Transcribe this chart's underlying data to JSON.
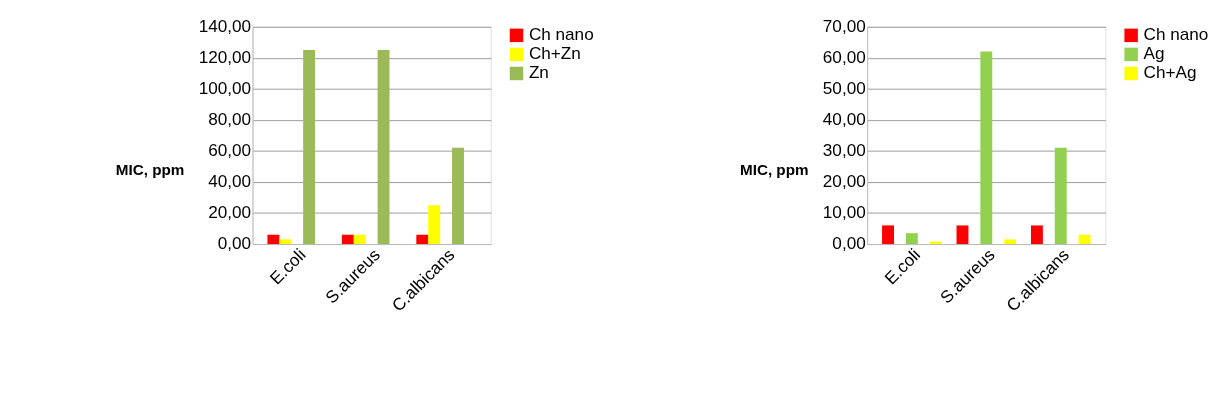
{
  "chart_data": [
    {
      "type": "bar",
      "ylabel": "MIC, ppm",
      "categories": [
        "E.coli",
        "S.aureus",
        "C.albicans"
      ],
      "series": [
        {
          "name": "Ch nano",
          "color": "#ff0000",
          "values": [
            6,
            6,
            6
          ]
        },
        {
          "name": "Ch+Zn",
          "color": "#ffff00",
          "values": [
            3,
            6,
            25
          ]
        },
        {
          "name": "Zn",
          "color": "#9bbb59",
          "values": [
            125,
            125,
            62
          ]
        }
      ],
      "ylim": [
        0,
        140
      ],
      "yticks": [
        {
          "value": 0,
          "label": "0,00"
        },
        {
          "value": 20,
          "label": "20,00"
        },
        {
          "value": 40,
          "label": "40,00"
        },
        {
          "value": 60,
          "label": "60,00"
        },
        {
          "value": 80,
          "label": "80,00"
        },
        {
          "value": 100,
          "label": "100,00"
        },
        {
          "value": 120,
          "label": "120,00"
        },
        {
          "value": 140,
          "label": "140,00"
        }
      ],
      "grid": "y",
      "legend": "right"
    },
    {
      "type": "bar",
      "ylabel": "MIC, ppm",
      "categories": [
        "E.coli",
        "S.aureus",
        "C.albicans"
      ],
      "series": [
        {
          "name": "Ch nano",
          "color": "#ff0000",
          "values": [
            6,
            6,
            6
          ]
        },
        {
          "name": "Ag",
          "color": "#92d050",
          "values": [
            3.5,
            62,
            31
          ]
        },
        {
          "name": "Ch+Ag",
          "color": "#ffff00",
          "values": [
            0.8,
            1.5,
            3
          ]
        }
      ],
      "ylim": [
        0,
        70
      ],
      "yticks": [
        {
          "value": 0,
          "label": "0,00"
        },
        {
          "value": 10,
          "label": "10,00"
        },
        {
          "value": 20,
          "label": "20,00"
        },
        {
          "value": 30,
          "label": "30,00"
        },
        {
          "value": 40,
          "label": "40,00"
        },
        {
          "value": 50,
          "label": "50,00"
        },
        {
          "value": 60,
          "label": "60,00"
        },
        {
          "value": 70,
          "label": "70,00"
        }
      ],
      "grid": "y",
      "legend": "right"
    }
  ]
}
